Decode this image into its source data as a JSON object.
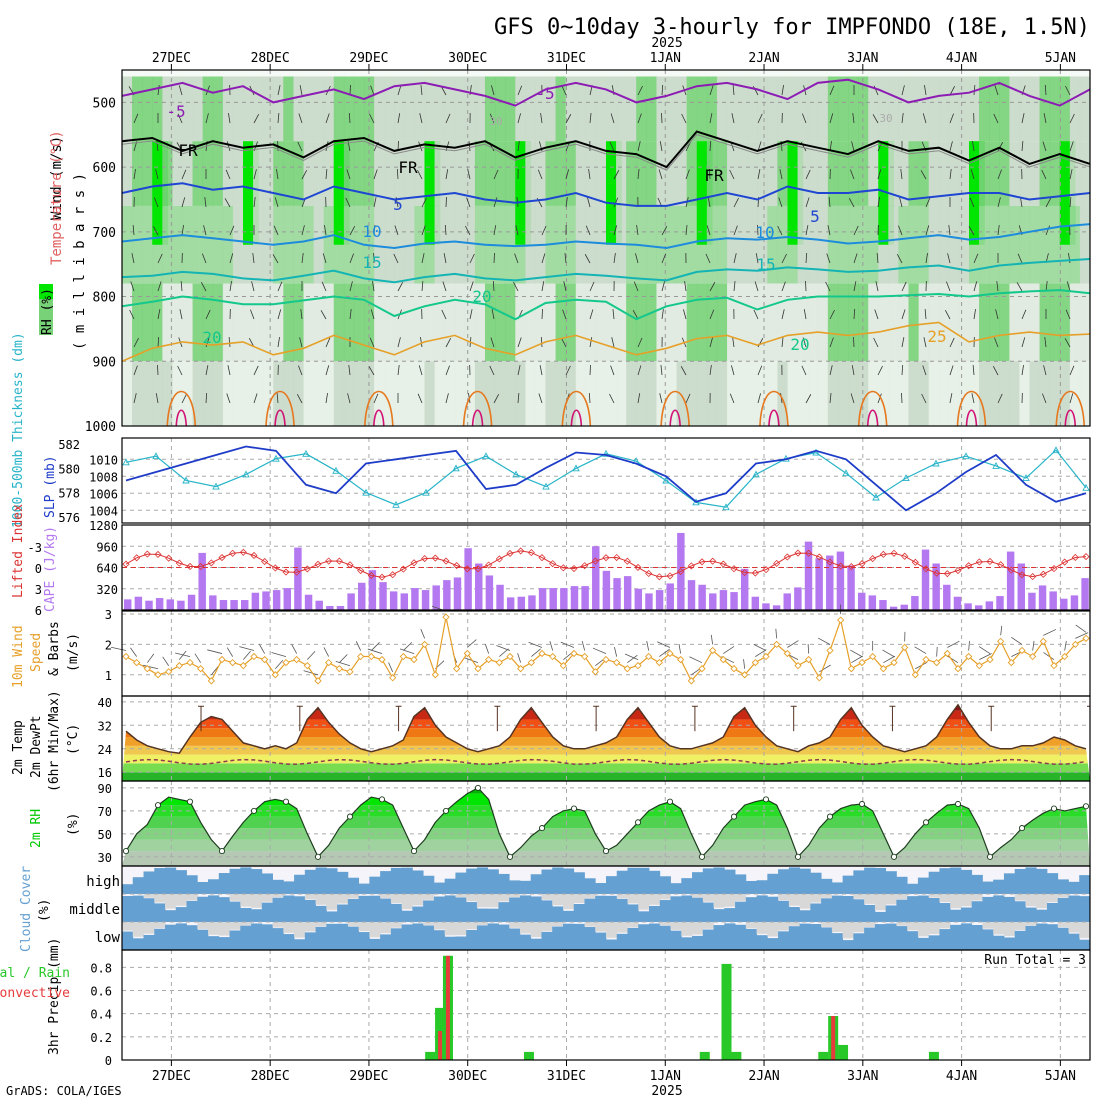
{
  "header": {
    "title": "GFS 0~10day 3-hourly for IMPFONDO (18E, 1.5N)",
    "year_label": "2025",
    "credit": "GrADS: COLA/IGES",
    "run_total": "Run Total = 3"
  },
  "time_axis": {
    "top_labels": [
      "27DEC",
      "28DEC",
      "29DEC",
      "30DEC",
      "31DEC",
      "1JAN",
      "2JAN",
      "3JAN",
      "4JAN",
      "5JAN"
    ],
    "bottom_labels": [
      "27DEC",
      "28DEC",
      "29DEC",
      "30DEC",
      "31DEC",
      "1JAN",
      "2JAN",
      "3JAN",
      "4JAN",
      "5JAN"
    ],
    "bottom_year": "2025"
  },
  "colors": {
    "rh_light": "#e6f0e6",
    "rh_mid": "#c9d9c9",
    "rh_green": "#78d278",
    "rh_bright": "#00e600",
    "temp_m5": "#8c1cb4",
    "temp_fr": "#000000",
    "temp_5": "#1e46d2",
    "temp_10": "#1e8cdc",
    "temp_15": "#14b4b4",
    "temp_20": "#14c88c",
    "temp_25": "#e6a028",
    "temp_30": "#e6781e",
    "temp_35": "#d21478",
    "slp": "#1e3cc8",
    "thickness": "#28b4c8",
    "lifted": "#dc3232",
    "cape": "#b478f0",
    "wind10": "#e6a028",
    "rh2m": "#00c800",
    "cloud": "#64a0d2",
    "precip_total": "#28c828",
    "precip_conv": "#e63c3c"
  },
  "panels": {
    "upper": {
      "ylabel_parts": [
        "Wind (m/s)",
        "Temperature (°C)",
        "RH (%)"
      ],
      "yunit": "( m i l l i b a r s )",
      "yticks": [
        "500",
        "600",
        "700",
        "800",
        "900",
        "1000"
      ],
      "contour_labels": {
        "m5": "-5",
        "fr": "FR",
        "c5": "5",
        "c10": "10",
        "c15": "15",
        "c20": "20",
        "c25": "25",
        "rh30": "30"
      }
    },
    "slp": {
      "ylabel_left": "1000-500mb Thickness (dm)",
      "ylabel_right": "SLP (mb)",
      "left_ticks": [
        "582",
        "580",
        "578",
        "576"
      ],
      "right_ticks": [
        "1010",
        "1008",
        "1006",
        "1004"
      ]
    },
    "cape": {
      "ylabel_left": "Lifted Index",
      "ylabel_right": "CAPE (J/kg)",
      "left_ticks": [
        "-3",
        "0",
        "3",
        "6"
      ],
      "right_ticks": [
        "1280",
        "960",
        "640",
        "320"
      ]
    },
    "wind": {
      "ylabel": [
        "10m Wind",
        "Speed",
        "& Barbs",
        "(m/s)"
      ],
      "yticks": [
        "3",
        "2",
        "1"
      ]
    },
    "temp": {
      "ylabel": [
        "2m Temp",
        "2m DewPt",
        "(6hr Min/Max)",
        "(°C)"
      ],
      "yticks": [
        "40",
        "32",
        "24",
        "16"
      ]
    },
    "rh": {
      "ylabel": [
        "2m RH",
        "(%)"
      ],
      "yticks": [
        "90",
        "70",
        "50",
        "30"
      ]
    },
    "cloud": {
      "ylabel": [
        "Cloud Cover",
        "(%)"
      ],
      "levels": [
        "high",
        "middle",
        "low"
      ]
    },
    "precip": {
      "ylabel": [
        "3hr Precip (mm)",
        "Total / Rain",
        "Convective"
      ],
      "yticks": [
        "0.8",
        "0.6",
        "0.4",
        "0.2",
        "0"
      ]
    }
  },
  "chart_data": [
    {
      "type": "line",
      "name": "pressure-time cross-section",
      "ylim": [
        450,
        1000
      ],
      "contours": {
        "m5": [
          490,
          480,
          470,
          485,
          475,
          500,
          490,
          480,
          495,
          475,
          470,
          480,
          490,
          505,
          480,
          470,
          480,
          500,
          490,
          475,
          470,
          480,
          495,
          470,
          465,
          480,
          500,
          490,
          485,
          470,
          490,
          505,
          480
        ],
        "fr": [
          560,
          555,
          575,
          560,
          570,
          565,
          585,
          560,
          555,
          575,
          565,
          570,
          560,
          585,
          570,
          560,
          575,
          580,
          600,
          545,
          560,
          575,
          560,
          570,
          580,
          560,
          575,
          570,
          590,
          570,
          595,
          580,
          595
        ],
        "c5": [
          640,
          630,
          625,
          635,
          630,
          640,
          650,
          630,
          640,
          650,
          645,
          640,
          650,
          655,
          650,
          640,
          655,
          660,
          660,
          650,
          640,
          650,
          630,
          640,
          640,
          635,
          650,
          645,
          640,
          640,
          650,
          645,
          640
        ],
        "c10": [
          715,
          710,
          705,
          710,
          715,
          720,
          715,
          705,
          720,
          725,
          718,
          715,
          720,
          722,
          720,
          715,
          718,
          720,
          725,
          715,
          710,
          712,
          708,
          712,
          718,
          715,
          710,
          705,
          712,
          708,
          700,
          692,
          688
        ],
        "c15": [
          770,
          768,
          762,
          765,
          772,
          775,
          768,
          760,
          772,
          778,
          770,
          765,
          772,
          775,
          770,
          765,
          768,
          772,
          775,
          762,
          758,
          760,
          755,
          758,
          762,
          760,
          755,
          752,
          760,
          752,
          748,
          745,
          742
        ],
        "c20": [
          815,
          808,
          800,
          805,
          812,
          812,
          806,
          800,
          805,
          830,
          815,
          805,
          812,
          835,
          810,
          805,
          808,
          835,
          815,
          805,
          802,
          820,
          805,
          800,
          800,
          800,
          798,
          796,
          800,
          795,
          792,
          790,
          795
        ],
        "c25": [
          900,
          880,
          870,
          875,
          870,
          890,
          880,
          860,
          875,
          890,
          870,
          860,
          880,
          890,
          870,
          860,
          875,
          890,
          880,
          865,
          860,
          875,
          860,
          855,
          860,
          855,
          845,
          840,
          870,
          860,
          855,
          860,
          858
        ]
      }
    },
    {
      "type": "line",
      "name": "thickness-slp",
      "slp": [
        1007.5,
        1008.5,
        1009.5,
        1010.5,
        1011.5,
        1011,
        1007,
        1006,
        1009.5,
        1010,
        1010.5,
        1011,
        1006.5,
        1007,
        1009,
        1010.8,
        1010.5,
        1009.5,
        1008,
        1005,
        1006,
        1009.5,
        1010,
        1011,
        1010,
        1007,
        1004,
        1006,
        1008.5,
        1010.5,
        1007,
        1005,
        1006
      ],
      "thickness": [
        580.5,
        581,
        579,
        578.5,
        579.5,
        580.8,
        581.2,
        579.8,
        578,
        577,
        578,
        580,
        581,
        579.5,
        578.5,
        580,
        581.2,
        580.6,
        579,
        577.2,
        576.8,
        579.5,
        580.8,
        581.3,
        579.6,
        577.6,
        579.2,
        580.4,
        581,
        580.2,
        579.2,
        581.5,
        578.4
      ]
    },
    {
      "type": "bar",
      "name": "cape-lifted",
      "cape": [
        160,
        200,
        140,
        180,
        160,
        140,
        230,
        860,
        220,
        150,
        150,
        150,
        260,
        280,
        300,
        330,
        940,
        230,
        140,
        60,
        60,
        250,
        410,
        600,
        420,
        280,
        250,
        330,
        300,
        370,
        450,
        490,
        930,
        700,
        520,
        380,
        190,
        200,
        220,
        330,
        330,
        330,
        360,
        360,
        960,
        590,
        480,
        510,
        320,
        250,
        300,
        400,
        1160,
        450,
        380,
        250,
        300,
        270,
        620,
        200,
        100,
        70,
        250,
        340,
        1030,
        780,
        820,
        880,
        670,
        260,
        220,
        150,
        50,
        80,
        210,
        910,
        700,
        380,
        200,
        100,
        70,
        130,
        210,
        880,
        700,
        260,
        370,
        280,
        170,
        220,
        480
      ]
    },
    {
      "type": "line",
      "name": "wind-10m",
      "speed": [
        1.6,
        1.4,
        1.2,
        1.0,
        1.1,
        1.3,
        1.4,
        1.2,
        0.8,
        1.5,
        1.4,
        1.3,
        1.6,
        1.5,
        1.0,
        1.4,
        1.5,
        1.3,
        0.8,
        1.4,
        1.2,
        1.1,
        1.6,
        1.6,
        1.5,
        0.9,
        1.6,
        1.5,
        2.0,
        1.0,
        2.9,
        1.2,
        1.7,
        1.2,
        1.5,
        1.4,
        1.6,
        1.2,
        1.4,
        1.7,
        1.6,
        1.3,
        1.7,
        1.6,
        1.1,
        1.5,
        1.4,
        1.2,
        1.3,
        1.6,
        1.4,
        1.7,
        1.5,
        0.8,
        1.2,
        1.8,
        1.5,
        1.2,
        1.0,
        1.4,
        1.6,
        2.0,
        1.7,
        1.3,
        1.5,
        0.9,
        1.8,
        2.8,
        1.2,
        1.4,
        1.6,
        1.2,
        1.4,
        1.9,
        1.0,
        1.5,
        1.4,
        1.7,
        1.2,
        1.6,
        1.3,
        1.5,
        2.1,
        1.4,
        1.8,
        1.6,
        2.1,
        1.3,
        1.6,
        2.0,
        2.2
      ]
    },
    {
      "type": "area",
      "name": "temp-2m",
      "temp": [
        30,
        27,
        25,
        24,
        23,
        22.5,
        28,
        33,
        35,
        34,
        30,
        26,
        25,
        24,
        25,
        24,
        26,
        34,
        38,
        33,
        29,
        26,
        24,
        23,
        24,
        25,
        27,
        35,
        38,
        32,
        28,
        26,
        24,
        23,
        24,
        25,
        28,
        34,
        38,
        33,
        28,
        25,
        24,
        24,
        25,
        26,
        28,
        34,
        38,
        33,
        28,
        25,
        24,
        24,
        25,
        26,
        28,
        35,
        38,
        32,
        28,
        25,
        24,
        23,
        25,
        26,
        28,
        34,
        38,
        32,
        28,
        25,
        24,
        23,
        24,
        25,
        28,
        34,
        39,
        33,
        28,
        25,
        24,
        24,
        25,
        25,
        26,
        28,
        27,
        25,
        24
      ]
    },
    {
      "type": "area",
      "name": "rh-2m",
      "rh": [
        35,
        50,
        58,
        75,
        82,
        80,
        78,
        60,
        45,
        35,
        48,
        60,
        70,
        78,
        80,
        78,
        72,
        50,
        30,
        40,
        55,
        65,
        75,
        82,
        80,
        75,
        55,
        35,
        45,
        60,
        70,
        78,
        85,
        90,
        80,
        50,
        30,
        38,
        48,
        55,
        65,
        70,
        72,
        70,
        50,
        35,
        40,
        50,
        60,
        70,
        75,
        78,
        72,
        50,
        30,
        40,
        55,
        65,
        75,
        78,
        80,
        75,
        55,
        30,
        40,
        55,
        65,
        72,
        75,
        76,
        70,
        50,
        30,
        38,
        50,
        60,
        68,
        75,
        76,
        72,
        55,
        30,
        38,
        45,
        55,
        62,
        68,
        72,
        70,
        72,
        74
      ]
    },
    {
      "type": "bar",
      "name": "precip-3hr",
      "ylim": [
        0,
        0.9
      ],
      "total_points": [
        [
          29.62,
          0.07
        ],
        [
          29.72,
          0.45
        ],
        [
          29.8,
          0.9
        ],
        [
          30.62,
          0.07
        ],
        [
          32.4,
          0.07
        ],
        [
          32.62,
          0.83
        ],
        [
          32.72,
          0.07
        ],
        [
          33.6,
          0.07
        ],
        [
          33.7,
          0.38
        ],
        [
          33.8,
          0.13
        ],
        [
          34.72,
          0.07
        ]
      ],
      "convective_points": [
        [
          29.72,
          0.25
        ],
        [
          29.8,
          0.9
        ],
        [
          33.7,
          0.38
        ]
      ]
    }
  ]
}
